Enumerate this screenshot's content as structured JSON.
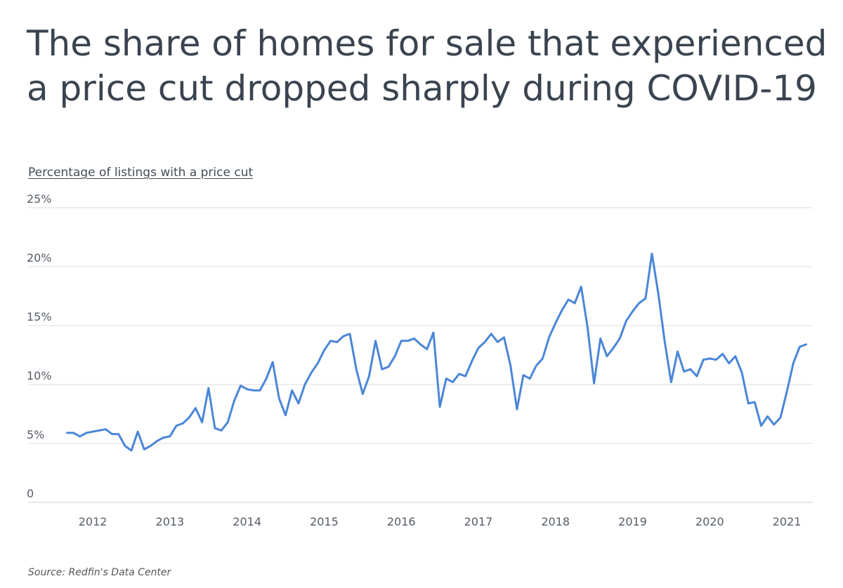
{
  "title": "The share of homes for sale that experienced a price cut dropped sharply during COVID-19",
  "source": "Source:  Redfin's Data Center",
  "colors": {
    "line": "#4a86d8",
    "grid": "#dddddd",
    "text": "#3a4450"
  },
  "chart_data": {
    "type": "line",
    "ylabel": "Percentage of listings with a price cut",
    "xlabel": "",
    "ylim": [
      0,
      25
    ],
    "yticks": [
      "0",
      "5%",
      "10%",
      "15%",
      "20%",
      "25%"
    ],
    "yticks_values": [
      0,
      5,
      10,
      15,
      20,
      25
    ],
    "xticks": [
      "2012",
      "2013",
      "2014",
      "2015",
      "2016",
      "2017",
      "2018",
      "2019",
      "2020",
      "2021"
    ],
    "xticks_values": [
      2012,
      2013,
      2014,
      2015,
      2016,
      2017,
      2018,
      2019,
      2020,
      2021
    ],
    "x_range": [
      2011.58,
      2021.3
    ],
    "grid": true,
    "series": [
      {
        "x": [
          2011.667,
          2011.75,
          2011.833,
          2011.917,
          2012.0,
          2012.083,
          2012.167,
          2012.25,
          2012.333,
          2012.417,
          2012.5,
          2012.583,
          2012.667,
          2012.75,
          2012.833,
          2012.917,
          2013.0,
          2013.083,
          2013.167,
          2013.25,
          2013.333,
          2013.417,
          2013.5,
          2013.583,
          2013.667,
          2013.75,
          2013.833,
          2013.917,
          2014.0,
          2014.083,
          2014.167,
          2014.25,
          2014.333,
          2014.417,
          2014.5,
          2014.583,
          2014.667,
          2014.75,
          2014.833,
          2014.917,
          2015.0,
          2015.083,
          2015.167,
          2015.25,
          2015.333,
          2015.417,
          2015.5,
          2015.583,
          2015.667,
          2015.75,
          2015.833,
          2015.917,
          2016.0,
          2016.083,
          2016.167,
          2016.25,
          2016.333,
          2016.417,
          2016.5,
          2016.583,
          2016.667,
          2016.75,
          2016.833,
          2016.917,
          2017.0,
          2017.083,
          2017.167,
          2017.25,
          2017.333,
          2017.417,
          2017.5,
          2017.583,
          2017.667,
          2017.75,
          2017.833,
          2017.917,
          2018.0,
          2018.083,
          2018.167,
          2018.25,
          2018.333,
          2018.417,
          2018.5,
          2018.583,
          2018.667,
          2018.75,
          2018.833,
          2018.917,
          2019.0,
          2019.083,
          2019.167,
          2019.25,
          2019.333,
          2019.417,
          2019.5,
          2019.583,
          2019.667,
          2019.75,
          2019.833,
          2019.917,
          2020.0,
          2020.083,
          2020.167,
          2020.25,
          2020.333,
          2020.417,
          2020.5,
          2020.583,
          2020.667,
          2020.75,
          2020.833,
          2020.917,
          2021.0,
          2021.083,
          2021.167,
          2021.25
        ],
        "values": [
          5.9,
          5.9,
          5.6,
          5.9,
          6.0,
          6.1,
          6.2,
          5.8,
          5.8,
          4.8,
          4.4,
          6.0,
          4.5,
          4.8,
          5.2,
          5.5,
          5.6,
          6.5,
          6.7,
          7.2,
          8.0,
          6.8,
          9.7,
          6.3,
          6.1,
          6.8,
          8.6,
          9.9,
          9.6,
          9.5,
          9.5,
          10.5,
          11.9,
          8.8,
          7.4,
          9.5,
          8.4,
          10.0,
          11.0,
          11.8,
          12.9,
          13.7,
          13.6,
          14.1,
          14.3,
          11.3,
          9.2,
          10.7,
          13.7,
          11.3,
          11.5,
          12.4,
          13.7,
          13.7,
          13.9,
          13.4,
          13.0,
          14.4,
          8.1,
          10.5,
          10.2,
          10.9,
          10.7,
          12.0,
          13.1,
          13.6,
          14.3,
          13.6,
          14.0,
          11.6,
          7.9,
          10.8,
          10.5,
          11.6,
          12.2,
          14.0,
          15.2,
          16.3,
          17.2,
          16.9,
          18.3,
          14.8,
          10.1,
          13.9,
          12.4,
          13.1,
          13.9,
          15.4,
          16.2,
          16.9,
          17.3,
          21.1,
          17.7,
          13.6,
          10.2,
          12.8,
          11.1,
          11.3,
          10.7,
          12.1,
          12.2,
          12.1,
          12.6,
          11.8,
          12.4,
          11.0,
          8.4,
          8.5,
          6.5,
          7.3,
          6.6,
          7.2,
          9.4,
          11.8,
          13.2,
          13.4
        ]
      }
    ]
  }
}
